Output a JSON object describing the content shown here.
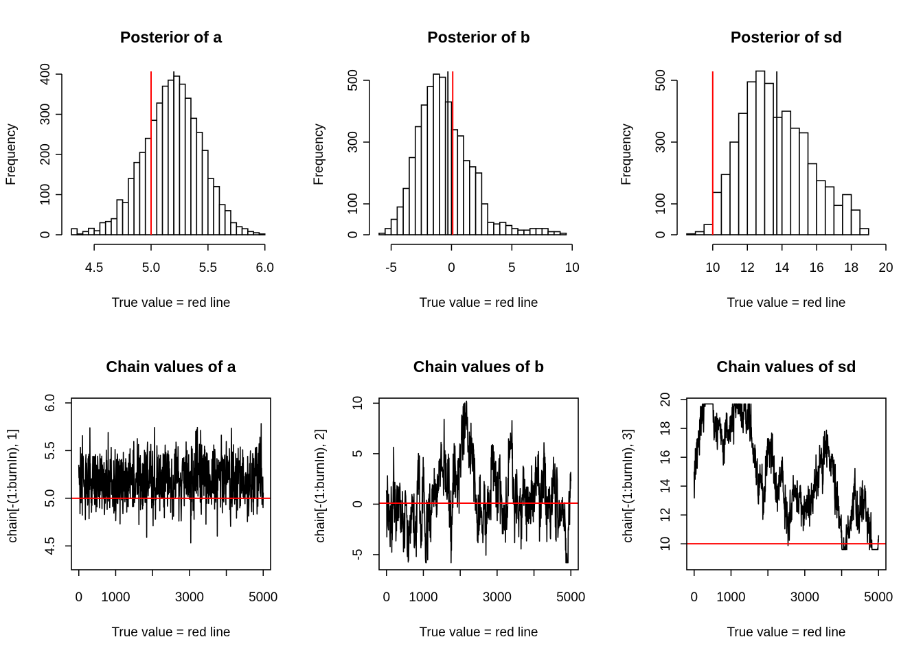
{
  "chart_data": [
    {
      "type": "bar",
      "panel": "histogram",
      "title": "Posterior of a",
      "xlabel": "True value = red line",
      "ylabel": "Frequency",
      "xlim": [
        4.3,
        6.05
      ],
      "ylim": [
        0,
        400
      ],
      "xticks": [
        4.5,
        5.0,
        5.5,
        6.0
      ],
      "xtick_labels": [
        "4.5",
        "5.0",
        "5.5",
        "6.0"
      ],
      "yticks": [
        0,
        100,
        200,
        300,
        400
      ],
      "ytick_labels": [
        "0",
        "100",
        "200",
        "300",
        "400"
      ],
      "bin_start": 4.3,
      "bin_width": 0.05,
      "values": [
        15,
        2,
        8,
        16,
        10,
        30,
        33,
        40,
        87,
        80,
        140,
        180,
        205,
        240,
        285,
        328,
        370,
        385,
        395,
        375,
        340,
        290,
        255,
        210,
        140,
        120,
        75,
        60,
        30,
        20,
        15,
        8,
        5,
        2
      ],
      "true_value": 5.0,
      "mean_value": 5.2,
      "grid": false,
      "colors": {
        "true_line": "#ff0000",
        "mean_line": "#000000",
        "bars": "#ffffff"
      }
    },
    {
      "type": "bar",
      "panel": "histogram",
      "title": "Posterior of b",
      "xlabel": "True value = red line",
      "ylabel": "Frequency",
      "xlim": [
        -6,
        10.5
      ],
      "ylim": [
        0,
        520
      ],
      "xticks": [
        -5,
        0,
        5,
        10
      ],
      "xtick_labels": [
        "-5",
        "0",
        "5",
        "10"
      ],
      "yticks": [
        0,
        100,
        300,
        500
      ],
      "ytick_labels": [
        "0",
        "100",
        "300",
        "500"
      ],
      "bin_start": -6,
      "bin_width": 0.5,
      "values": [
        5,
        20,
        50,
        90,
        150,
        250,
        350,
        420,
        480,
        520,
        510,
        430,
        340,
        320,
        240,
        220,
        200,
        100,
        40,
        35,
        40,
        30,
        20,
        15,
        15,
        20,
        20,
        20,
        10,
        10,
        5
      ],
      "true_value": 0.1,
      "mean_value": -0.3,
      "grid": false,
      "colors": {
        "true_line": "#ff0000",
        "mean_line": "#000000",
        "bars": "#ffffff"
      }
    },
    {
      "type": "bar",
      "panel": "histogram",
      "title": "Posterior of sd",
      "xlabel": "True value = red line",
      "ylabel": "Frequency",
      "xlim": [
        8.5,
        20
      ],
      "ylim": [
        0,
        520
      ],
      "xticks": [
        10,
        12,
        14,
        16,
        18,
        20
      ],
      "xtick_labels": [
        "10",
        "12",
        "14",
        "16",
        "18",
        "20"
      ],
      "yticks": [
        0,
        100,
        300,
        500
      ],
      "ytick_labels": [
        "0",
        "100",
        "300",
        "500"
      ],
      "bin_start": 8.5,
      "bin_width": 0.5,
      "values": [
        3,
        10,
        33,
        137,
        195,
        300,
        393,
        495,
        530,
        490,
        380,
        400,
        345,
        330,
        230,
        175,
        155,
        95,
        130,
        80,
        20
      ],
      "true_value": 10,
      "mean_value": 13.7,
      "grid": false,
      "colors": {
        "true_line": "#ff0000",
        "mean_line": "#000000",
        "bars": "#ffffff"
      }
    },
    {
      "type": "line",
      "panel": "trace",
      "title": "Chain values of a",
      "xlabel": "True value = red line",
      "ylabel": "chain[-(1:burnIn), 1]",
      "xlim": [
        -200,
        5200
      ],
      "ylim": [
        4.25,
        6.05
      ],
      "xticks": [
        0,
        1000,
        2000,
        3000,
        4000,
        5000
      ],
      "xtick_labels": [
        "0",
        "1000",
        "",
        "3000",
        "",
        "5000"
      ],
      "yticks": [
        4.5,
        5.0,
        5.5,
        6.0
      ],
      "ytick_labels": [
        "4.5",
        "5.0",
        "5.5",
        "6.0"
      ],
      "n_samples": 5000,
      "true_value": 5.0,
      "chain_mean": 5.2,
      "chain_sd": 0.2,
      "chain_min": 4.3,
      "chain_max": 6.02,
      "grid": false,
      "colors": {
        "true_line": "#ff0000",
        "trace": "#000000"
      }
    },
    {
      "type": "line",
      "panel": "trace",
      "title": "Chain values of b",
      "xlabel": "True value = red line",
      "ylabel": "chain[-(1:burnIn), 2]",
      "xlim": [
        -200,
        5200
      ],
      "ylim": [
        -6.5,
        10.5
      ],
      "xticks": [
        0,
        1000,
        2000,
        3000,
        4000,
        5000
      ],
      "xtick_labels": [
        "0",
        "1000",
        "",
        "3000",
        "",
        "5000"
      ],
      "yticks": [
        -5,
        0,
        5,
        10
      ],
      "ytick_labels": [
        "-5",
        "0",
        "5",
        "10"
      ],
      "n_samples": 5000,
      "true_value": 0.1,
      "chain_mean": -0.3,
      "chain_sd": 2.5,
      "chain_min": -5.8,
      "chain_max": 10.2,
      "grid": false,
      "colors": {
        "true_line": "#ff0000",
        "trace": "#000000"
      }
    },
    {
      "type": "line",
      "panel": "trace",
      "title": "Chain values of sd",
      "xlabel": "True value = red line",
      "ylabel": "chain[-(1:burnIn), 3]",
      "xlim": [
        -200,
        5200
      ],
      "ylim": [
        8.2,
        20.1
      ],
      "xticks": [
        0,
        1000,
        2000,
        3000,
        4000,
        5000
      ],
      "xtick_labels": [
        "0",
        "1000",
        "",
        "3000",
        "",
        "5000"
      ],
      "yticks": [
        10,
        12,
        14,
        16,
        18,
        20
      ],
      "ytick_labels": [
        "10",
        "12",
        "14",
        "16",
        "18",
        "20"
      ],
      "n_samples": 5000,
      "true_value": 10,
      "chain_mean": 13.7,
      "chain_sd": 2.0,
      "chain_min": 9.6,
      "chain_max": 19.7,
      "grid": false,
      "colors": {
        "true_line": "#ff0000",
        "trace": "#000000"
      }
    }
  ]
}
